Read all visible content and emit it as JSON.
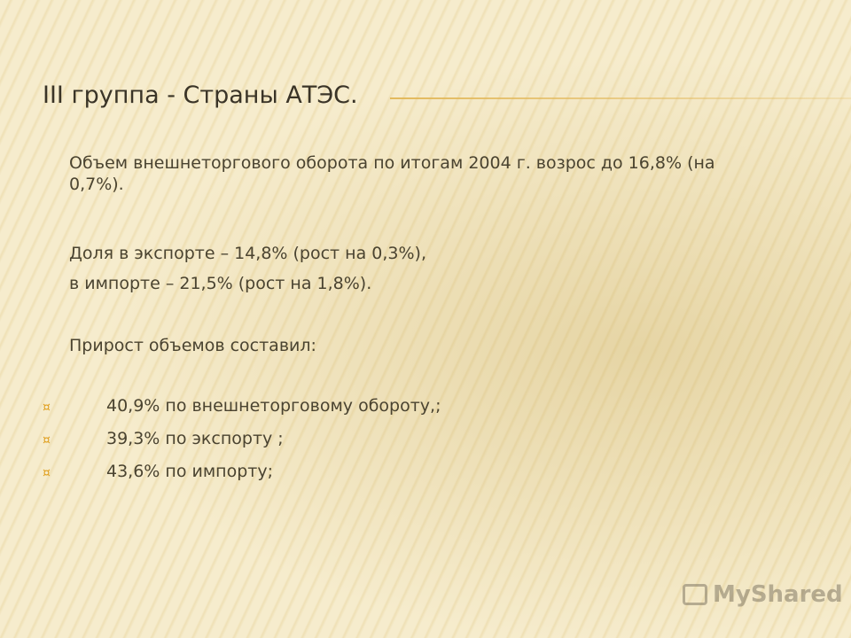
{
  "header": {
    "title": "III  группа - Страны АТЭС."
  },
  "body": {
    "paragraphs": [
      "Объем внешнеторгового оборота по итогам 2004 г. возрос до 16,8% (на 0,7%).",
      "Доля в экспорте – 14,8% (рост на 0,3%),",
      "в импорте – 21,5% (рост на 1,8%).",
      "Прирост объемов составил:"
    ],
    "bullets": [
      "40,9% по внешнеторговому обороту,;",
      "39,3% по экспорту ;",
      "43,6% по импорту;"
    ]
  },
  "watermark": {
    "text": "MyShared"
  }
}
